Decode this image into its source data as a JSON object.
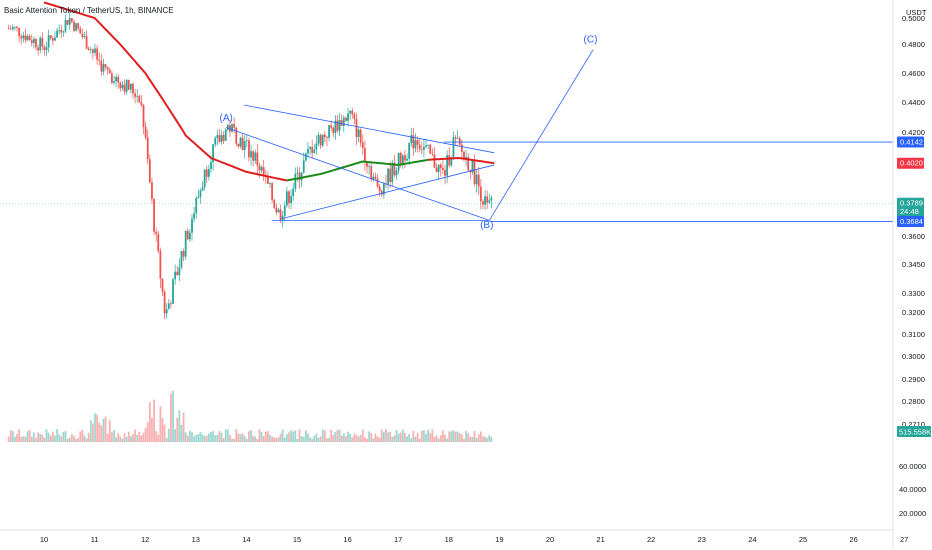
{
  "header": {
    "title": "Basic Attention Token / TetherUS, 1h, BINANCE"
  },
  "price_axis": {
    "currency": "USDT",
    "ticks": [
      "0.5000",
      "0.4800",
      "0.4600",
      "0.4400",
      "0.4200",
      "0.3600",
      "0.3450",
      "0.3300",
      "0.3200",
      "0.3100",
      "0.3000",
      "0.2900",
      "0.2800",
      "0.2710"
    ],
    "volume_ticks": [
      "60.0000",
      "40.0000",
      "20.0000"
    ]
  },
  "time_axis": {
    "labels": [
      "10",
      "11",
      "12",
      "13",
      "14",
      "15",
      "16",
      "17",
      "18",
      "19",
      "20",
      "21",
      "22",
      "23",
      "24",
      "25",
      "26",
      "27"
    ]
  },
  "price_tags": {
    "resistance": {
      "value": "0.4142",
      "color": "#2962ff"
    },
    "ma": {
      "value": "0.4020",
      "color": "#f23645"
    },
    "last": {
      "value": "0.3789",
      "countdown": "24:48",
      "color": "#26a69a"
    },
    "support": {
      "value": "0.3684",
      "color": "#2962ff"
    },
    "volume": {
      "value": "515.558K",
      "color": "#26a69a"
    }
  },
  "annotations": {
    "wave_a": "(A)",
    "wave_b": "(B)",
    "wave_c": "(C)"
  },
  "colors": {
    "up": "#26a69a",
    "down": "#ef5350",
    "line": "#2962ff",
    "ma_red": "#e01e1e",
    "ma_green": "#1b8a1b"
  },
  "chart_data": {
    "type": "candlestick",
    "symbol": "BATUSDT",
    "interval": "1h",
    "exchange": "BINANCE",
    "price_key_points": [
      {
        "day": 9.4,
        "price": 0.492
      },
      {
        "day": 10.0,
        "price": 0.478
      },
      {
        "day": 10.5,
        "price": 0.5
      },
      {
        "day": 11.2,
        "price": 0.462
      },
      {
        "day": 11.9,
        "price": 0.444
      },
      {
        "day": 12.2,
        "price": 0.36
      },
      {
        "day": 12.4,
        "price": 0.318
      },
      {
        "day": 12.8,
        "price": 0.358
      },
      {
        "day": 13.3,
        "price": 0.408
      },
      {
        "day": 13.65,
        "price": 0.424
      },
      {
        "day": 14.2,
        "price": 0.404
      },
      {
        "day": 14.65,
        "price": 0.372
      },
      {
        "day": 15.3,
        "price": 0.412
      },
      {
        "day": 16.05,
        "price": 0.432
      },
      {
        "day": 16.6,
        "price": 0.386
      },
      {
        "day": 17.35,
        "price": 0.417
      },
      {
        "day": 17.9,
        "price": 0.395
      },
      {
        "day": 18.1,
        "price": 0.415
      },
      {
        "day": 18.45,
        "price": 0.4
      },
      {
        "day": 18.75,
        "price": 0.376
      },
      {
        "day": 18.85,
        "price": 0.379
      }
    ],
    "moving_average": [
      {
        "day": 10.0,
        "price": 0.512
      },
      {
        "day": 11.0,
        "price": 0.5
      },
      {
        "day": 12.0,
        "price": 0.46
      },
      {
        "day": 12.8,
        "price": 0.418
      },
      {
        "day": 13.3,
        "price": 0.405
      },
      {
        "day": 14.0,
        "price": 0.397
      },
      {
        "day": 14.8,
        "price": 0.392
      },
      {
        "day": 15.5,
        "price": 0.396
      },
      {
        "day": 16.3,
        "price": 0.403
      },
      {
        "day": 17.0,
        "price": 0.401
      },
      {
        "day": 17.6,
        "price": 0.404
      },
      {
        "day": 18.2,
        "price": 0.405
      },
      {
        "day": 18.9,
        "price": 0.402
      }
    ],
    "trend_lines": [
      {
        "from": {
          "day": 13.95,
          "price": 0.438
        },
        "to": {
          "day": 18.9,
          "price": 0.408
        }
      },
      {
        "from": {
          "day": 13.6,
          "price": 0.423
        },
        "to": {
          "day": 18.8,
          "price": 0.369
        }
      },
      {
        "from": {
          "day": 14.7,
          "price": 0.37
        },
        "to": {
          "day": 18.9,
          "price": 0.401
        }
      },
      {
        "from": {
          "day": 14.5,
          "price": 0.369
        },
        "to": {
          "day": 18.8,
          "price": 0.369
        }
      },
      {
        "from": {
          "day": 18.8,
          "price": 0.369
        },
        "to": {
          "day": 20.85,
          "price": 0.476
        }
      }
    ],
    "horizontal_lines": [
      {
        "price": 0.4142,
        "from_day": 17.9
      },
      {
        "price": 0.3684,
        "from_day": 18.8
      }
    ],
    "labels": [
      {
        "text": "(A)",
        "day": 13.6,
        "price": 0.4275
      },
      {
        "text": "(B)",
        "day": 18.75,
        "price": 0.3645
      },
      {
        "text": "(C)",
        "day": 20.8,
        "price": 0.481
      }
    ],
    "last_price": 0.3789
  }
}
